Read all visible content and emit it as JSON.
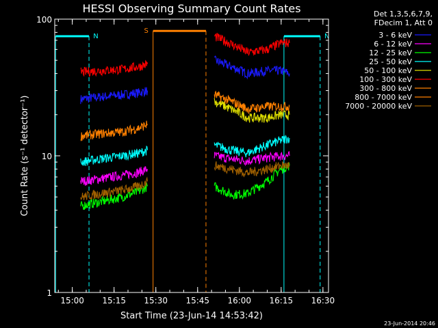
{
  "chart_data": {
    "type": "line",
    "title": "HESSI Observing Summary Count Rates",
    "xlabel": "Start Time (23-Jun-14 14:53:42)",
    "ylabel": "Count Rate (s⁻¹ detector⁻¹)",
    "yscale": "log",
    "ylim": [
      1,
      100
    ],
    "xlim": [
      "14:53:42",
      "16:32:00"
    ],
    "x_ticks": [
      "15:00",
      "15:15",
      "15:30",
      "15:45",
      "16:00",
      "16:15",
      "16:30"
    ],
    "y_ticks": [
      "1",
      "10",
      "100"
    ],
    "legend": {
      "placement": "top-right",
      "header": [
        "Det 1,3,5,6,7,9,",
        "FDecim 1, Att 0"
      ]
    },
    "footer": "23-Jun-2014 20:46",
    "flags": [
      {
        "label": "N",
        "color": "#00ffff",
        "start": "14:54",
        "end": "15:06",
        "level": 75
      },
      {
        "label": "S",
        "color": "#ff8000",
        "start": "15:29",
        "end": "15:48",
        "level": 82
      },
      {
        "label": "N",
        "color": "#00ffff",
        "start": "16:16",
        "end": "16:29",
        "level": 75
      }
    ],
    "series": [
      {
        "name": "3 - 6 keV",
        "color": "#1a1aff",
        "segments": [
          {
            "x": [
              "15:03",
              "15:10",
              "15:18",
              "15:24",
              "15:27"
            ],
            "y": [
              26,
              27,
              28,
              29,
              30
            ]
          },
          {
            "x": [
              "15:51",
              "15:57",
              "16:03",
              "16:10",
              "16:15",
              "16:18"
            ],
            "y": [
              50,
              45,
              40,
              42,
              42,
              40
            ]
          }
        ]
      },
      {
        "name": "6 - 12 keV",
        "color": "#ff00ff",
        "segments": [
          {
            "x": [
              "15:03",
              "15:10",
              "15:18",
              "15:24",
              "15:27"
            ],
            "y": [
              6.5,
              6.8,
              7.2,
              7.6,
              8.0
            ]
          },
          {
            "x": [
              "15:51",
              "15:57",
              "16:03",
              "16:10",
              "16:15",
              "16:18"
            ],
            "y": [
              10,
              9.5,
              9.2,
              9.7,
              10,
              10
            ]
          }
        ]
      },
      {
        "name": "12 - 25 keV",
        "color": "#00ff00",
        "segments": [
          {
            "x": [
              "15:03",
              "15:10",
              "15:18",
              "15:24",
              "15:27"
            ],
            "y": [
              4.3,
              4.6,
              5.0,
              5.5,
              6.0
            ]
          },
          {
            "x": [
              "15:51",
              "15:57",
              "16:03",
              "16:10",
              "16:15",
              "16:18"
            ],
            "y": [
              6.0,
              5.2,
              5.3,
              6.5,
              8.0,
              8.5
            ]
          }
        ]
      },
      {
        "name": "25 - 50 keV",
        "color": "#00ffff",
        "segments": [
          {
            "x": [
              "15:03",
              "15:10",
              "15:18",
              "15:24",
              "15:27"
            ],
            "y": [
              9.0,
              9.5,
              10,
              10.5,
              11
            ]
          },
          {
            "x": [
              "15:51",
              "15:57",
              "16:03",
              "16:10",
              "16:15",
              "16:18"
            ],
            "y": [
              12,
              11,
              10.5,
              12,
              13,
              13.5
            ]
          }
        ]
      },
      {
        "name": "50 - 100 keV",
        "color": "#e0e000",
        "segments": [
          {
            "x": [
              "15:51",
              "15:57",
              "16:03",
              "16:10",
              "16:15",
              "16:18"
            ],
            "y": [
              25,
              22,
              19,
              19,
              20,
              20
            ]
          }
        ]
      },
      {
        "name": "100 - 300 keV",
        "color": "#ff0000",
        "segments": [
          {
            "x": [
              "15:03",
              "15:10",
              "15:18",
              "15:24",
              "15:27"
            ],
            "y": [
              41,
              42,
              43,
              45,
              47
            ]
          },
          {
            "x": [
              "15:51",
              "15:57",
              "16:03",
              "16:10",
              "16:15",
              "16:18"
            ],
            "y": [
              75,
              66,
              57,
              60,
              67,
              67
            ]
          }
        ]
      },
      {
        "name": "300 - 800 keV",
        "color": "#ff8000",
        "segments": [
          {
            "x": [
              "15:03",
              "15:10",
              "15:18",
              "15:24",
              "15:27"
            ],
            "y": [
              14,
              14.5,
              15,
              16,
              17
            ]
          },
          {
            "x": [
              "15:51",
              "15:57",
              "16:03",
              "16:10",
              "16:15",
              "16:18"
            ],
            "y": [
              28,
              25,
              22,
              23,
              23,
              23
            ]
          }
        ]
      },
      {
        "name": "800 - 7000 keV",
        "color": "#ff8000",
        "segments": []
      },
      {
        "name": "7000 - 20000 keV",
        "color": "#a06000",
        "segments": [
          {
            "x": [
              "15:03",
              "15:10",
              "15:18",
              "15:24",
              "15:27"
            ],
            "y": [
              5.0,
              5.3,
              5.6,
              6.0,
              6.5
            ]
          },
          {
            "x": [
              "15:51",
              "15:57",
              "16:03",
              "16:10",
              "16:15",
              "16:18"
            ],
            "y": [
              8.5,
              8.0,
              7.5,
              8.0,
              8.5,
              8.5
            ]
          }
        ]
      }
    ]
  }
}
